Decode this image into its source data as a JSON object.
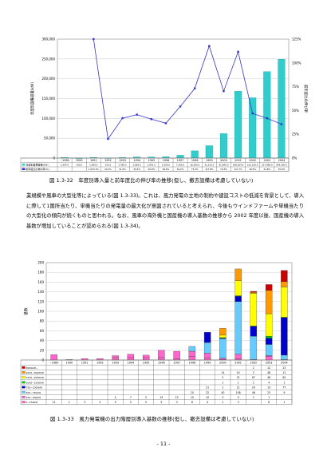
{
  "figure1": {
    "caption": "図 1.3-32　年度別導入量と前年度比の伸び率の推移(但し、撤去設備は考慮していない)",
    "chart_data": {
      "type": "bar",
      "categories": [
        "~1989",
        "1990",
        "1991",
        "1992",
        "1993",
        "1994",
        "1995",
        "1996",
        "1997",
        "1998",
        "1999",
        "2000",
        "2001",
        "2002",
        "2003",
        "2004"
      ],
      "series": [
        {
          "name": "年度別設備容量(kW)",
          "values": [
            1504.5,
            100,
            1659.5,
            332.5,
            1463.5,
            2863.5,
            2641.5,
            3300,
            7205,
            18300,
            31215,
            61640,
            168634,
            152120,
            217968,
            249300
          ]
        },
        {
          "name": "前年度比の伸び率(%)",
          "values": [
            null,
            null,
            1023.1,
            20.1,
            41.9,
            45.6,
            40.9,
            36.6,
            54.2,
            73.2,
            117.8,
            70.3,
            111.7,
            46.9,
            41.8,
            35.6
          ]
        }
      ],
      "table_values": [
        [
          "1,504.5",
          "100.0",
          "1,659.5",
          "332.5",
          "1,463.5",
          "2,863.5",
          "2,641.5",
          "3,300.0",
          "7,205.0",
          "18,300.0",
          "31,215.0",
          "61,640.0",
          "168,634.0",
          "152,120.0",
          "217,968.0",
          "249,300.0"
        ],
        [
          "",
          "",
          "1,023.1%",
          "20.1%",
          "41.9%",
          "45.6%",
          "40.9%",
          "36.6%",
          "54.2%",
          "73.2%",
          "117.8%",
          "70.3%",
          "111.7%",
          "46.9%",
          "41.8%",
          "35.6%"
        ]
      ],
      "y_left_ticks": [
        "300,000",
        "250,000",
        "200,000",
        "150,000",
        "100,000",
        "50,000",
        "0"
      ],
      "y_right_ticks": [
        "125%",
        "100%",
        "75%",
        "50%",
        "25%",
        "0%"
      ],
      "ylabel_left": "年度別設備容量(kW)",
      "ylabel_right": "前年度比の伸び率",
      "ylim_left": [
        0,
        300000
      ],
      "ylim_right": [
        0,
        125
      ],
      "colors": {
        "bar": "#33cccc",
        "line": "#3333cc"
      }
    }
  },
  "paragraph": "業規模や風車の大型化等によっている(図 1.3-33)。これは、風力発電の立地の制約や建設コストの低減を背景として、導入に際して1箇所当たり、単機当たりの発電量の最大化が意図されていると考えられ、今後もウインドファームや単機当たりの大型化の傾向が続くものと思われる。なお、風車の海外機と国産機の導入基数の推移から 2002 年度以後、国産機の導入基数が増加していることが認められる(図 1.3-34)。",
  "figure2": {
    "caption": "図 1.3-33　風力発電機の出力階層別導入基数の推移(但し、撤去設備は考慮していない)",
    "chart_data": {
      "type": "bar",
      "stacked": true,
      "categories": [
        "~1989",
        "1990",
        "1991",
        "1992",
        "1993",
        "1994",
        "1995",
        "1996",
        "1997",
        "1998",
        "1999",
        "2000",
        "2001",
        "2002",
        "2003",
        "2004"
      ],
      "series": [
        {
          "name": "0~250kW",
          "values": [
            11,
            1,
            3,
            3,
            5,
            5,
            5,
            5,
            3,
            8,
            4,
            1,
            3,
            0,
            8,
            1
          ],
          "color": "#ff66cc"
        },
        {
          "name": "250~500kW",
          "values": [
            0,
            0,
            0,
            0,
            4,
            7,
            5,
            15,
            15,
            10,
            10,
            3,
            9,
            1,
            1,
            0
          ],
          "color": "#ff66cc"
        },
        {
          "name": "500~750kW",
          "values": [
            0,
            0,
            0,
            0,
            0,
            0,
            0,
            0,
            0,
            10,
            22,
            40,
            108,
            48,
            23,
            9
          ],
          "color": "#66ccff"
        },
        {
          "name": "750~1000kW",
          "values": [
            0,
            0,
            0,
            0,
            0,
            0,
            0,
            0,
            0,
            0,
            21,
            1,
            11,
            20,
            13,
            77
          ],
          "color": "#0000cc"
        },
        {
          "name": "1000~1500kW",
          "values": [
            0,
            0,
            0,
            0,
            0,
            0,
            0,
            0,
            0,
            0,
            0,
            1,
            1,
            1,
            4,
            1
          ],
          "color": "#00cc00"
        },
        {
          "name": "1500~2000kW",
          "values": [
            0,
            0,
            0,
            0,
            0,
            0,
            0,
            0,
            0,
            0,
            0,
            5,
            31,
            67,
            46,
            62
          ],
          "color": "#ffff00"
        },
        {
          "name": "2000~3000kW",
          "values": [
            0,
            0,
            0,
            0,
            0,
            0,
            0,
            0,
            0,
            0,
            0,
            14,
            24,
            2,
            48,
            11
          ],
          "color": "#ff9900"
        },
        {
          "name": "3000kW~",
          "values": [
            0,
            0,
            0,
            0,
            0,
            0,
            0,
            0,
            0,
            0,
            0,
            0,
            0,
            2,
            12,
            23
          ],
          "color": "#cc0000"
        }
      ],
      "table_rows": [
        {
          "label": "3000kW~",
          "cells": [
            "",
            "",
            "",
            "",
            "",
            "",
            "",
            "",
            "",
            "",
            "",
            "",
            "",
            "2",
            "12",
            "23"
          ]
        },
        {
          "label": "2000~3000kW",
          "cells": [
            "",
            "",
            "",
            "",
            "",
            "",
            "",
            "",
            "",
            "",
            "",
            "14",
            "24",
            "2",
            "48",
            "11"
          ]
        },
        {
          "label": "1500~2000kW",
          "cells": [
            "",
            "",
            "",
            "",
            "",
            "",
            "",
            "",
            "",
            "",
            "",
            "5",
            "31",
            "67",
            "46",
            "62"
          ]
        },
        {
          "label": "1000~1500kW",
          "cells": [
            "",
            "",
            "",
            "",
            "",
            "",
            "",
            "",
            "",
            "",
            "",
            "1",
            "1",
            "1",
            "4",
            "1"
          ]
        },
        {
          "label": "750~1000kW",
          "cells": [
            "",
            "",
            "",
            "",
            "",
            "",
            "",
            "",
            "",
            "",
            "21",
            "1",
            "11",
            "20",
            "13",
            "77"
          ]
        },
        {
          "label": "500~750kW",
          "cells": [
            "",
            "",
            "",
            "",
            "",
            "",
            "",
            "",
            "",
            "10",
            "22",
            "40",
            "108",
            "48",
            "23",
            "9"
          ]
        },
        {
          "label": "250~500kW",
          "cells": [
            "",
            "",
            "",
            "",
            "4",
            "7",
            "5",
            "15",
            "15",
            "10",
            "10",
            "3",
            "9",
            "1",
            "1",
            ""
          ]
        },
        {
          "label": "0~250kW",
          "cells": [
            "11",
            "1",
            "3",
            "3",
            "5",
            "5",
            "5",
            "5",
            "3",
            "8",
            "4",
            "1",
            "3",
            "",
            "8",
            "1"
          ]
        }
      ],
      "y_ticks": [
        "200",
        "180",
        "160",
        "140",
        "120",
        "100",
        "80",
        "60",
        "40",
        "20",
        "0"
      ],
      "ylabel": "基数",
      "ylim": [
        0,
        200
      ]
    }
  },
  "page_number": "- 11 -"
}
